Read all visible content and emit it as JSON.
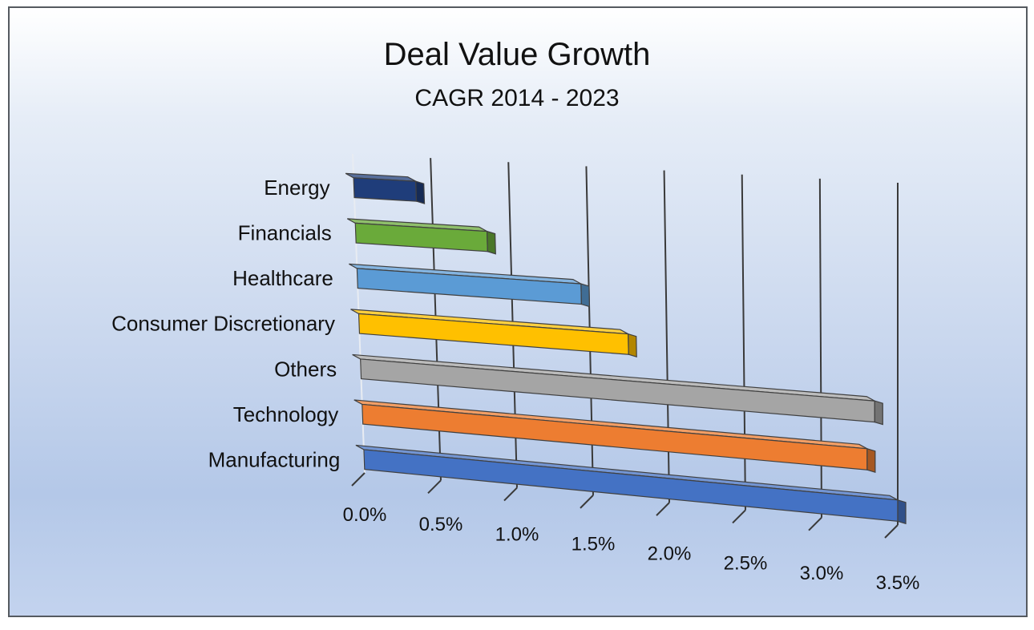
{
  "chart_data": {
    "type": "bar",
    "orientation": "horizontal",
    "style": "3d",
    "title": "Deal Value Growth",
    "subtitle": "CAGR 2014 - 2023",
    "categories": [
      "Energy",
      "Financials",
      "Healthcare",
      "Consumer Discretionary",
      "Others",
      "Technology",
      "Manufacturing"
    ],
    "values": [
      0.4,
      0.85,
      1.45,
      1.75,
      3.35,
      3.3,
      3.5
    ],
    "colors": [
      "#1f3d7a",
      "#6aaa3a",
      "#5b9bd5",
      "#ffc000",
      "#a5a5a5",
      "#ed7d31",
      "#4472c4"
    ],
    "xticks": [
      "0.0%",
      "0.5%",
      "1.0%",
      "1.5%",
      "2.0%",
      "2.5%",
      "3.0%",
      "3.5%"
    ],
    "xlim": [
      0,
      3.5
    ],
    "xlabel": "",
    "ylabel": "",
    "grid": true,
    "legend": "none"
  }
}
